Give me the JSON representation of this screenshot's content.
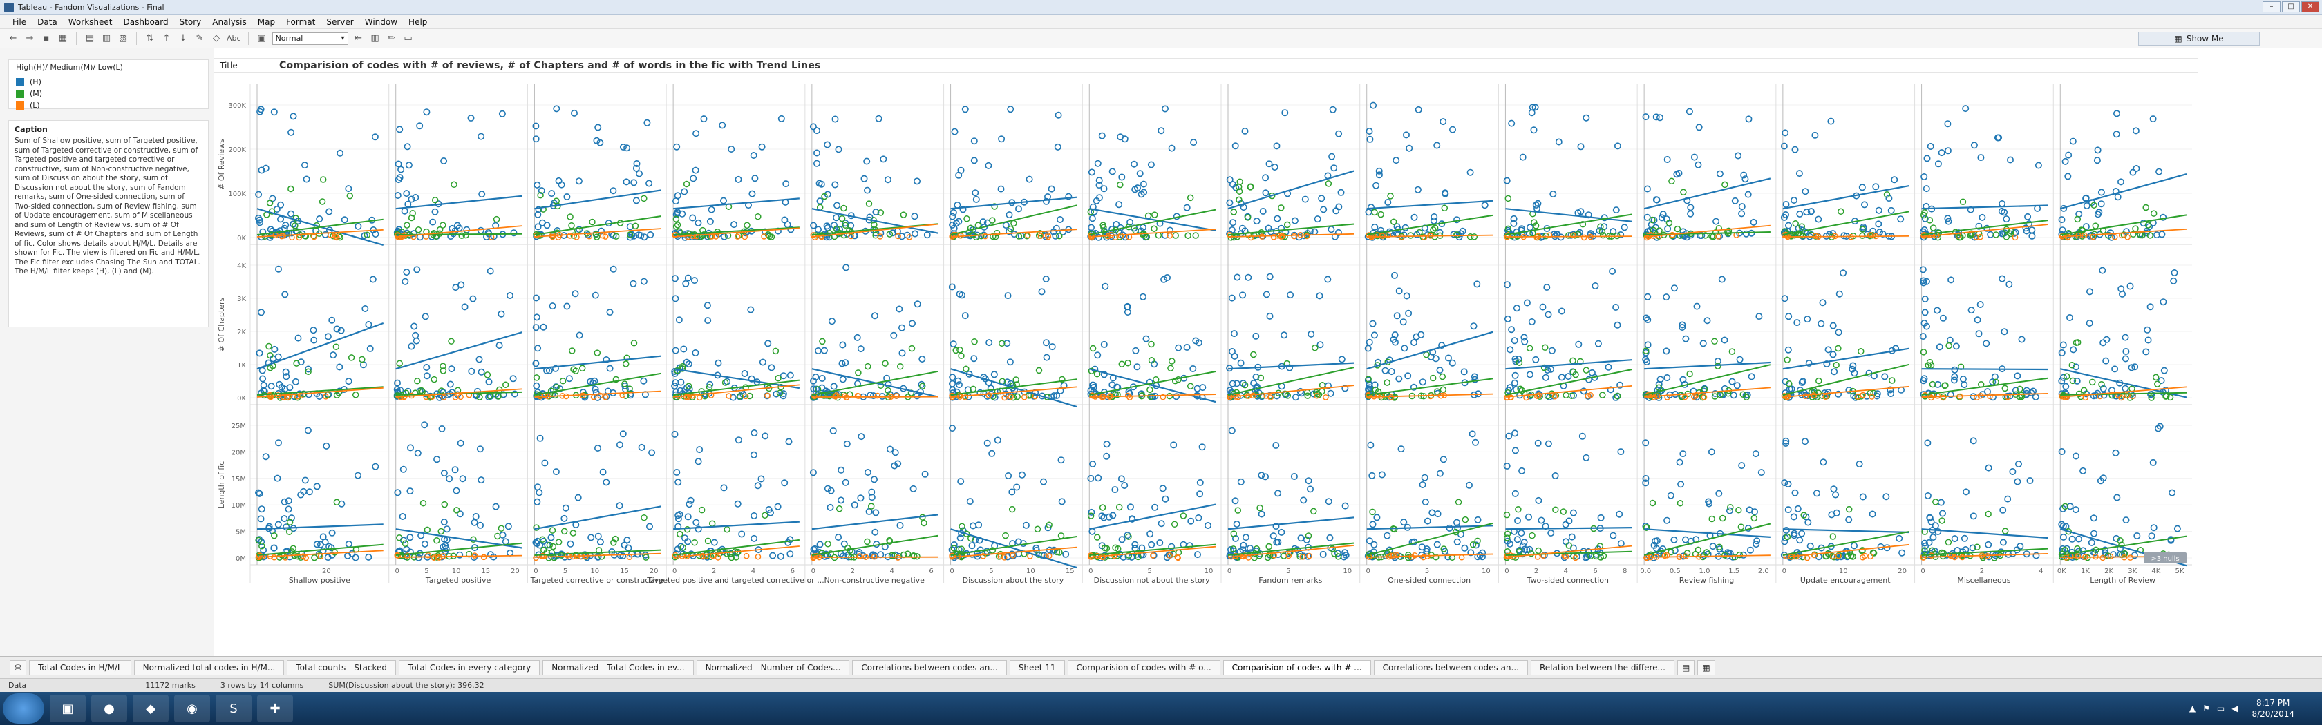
{
  "window": {
    "title": "Tableau - Fandom Visualizations - Final"
  },
  "menu": [
    "File",
    "Data",
    "Worksheet",
    "Dashboard",
    "Story",
    "Analysis",
    "Map",
    "Format",
    "Server",
    "Window",
    "Help"
  ],
  "toolbar": {
    "fit": "Normal",
    "show_me": "Show Me",
    "abc": "Abc"
  },
  "legend": {
    "title": "High(H)/ Medium(M)/ Low(L)",
    "items": [
      {
        "label": "(H)",
        "color": "#1f77b4"
      },
      {
        "label": "(M)",
        "color": "#2ca02c"
      },
      {
        "label": "(L)",
        "color": "#ff7f0e"
      }
    ]
  },
  "caption": {
    "title": "Caption",
    "text": "Sum of Shallow positive, sum of Targeted positive, sum of Targeted corrective or constructive, sum of Targeted positive and targeted corrective or constructive, sum of Non-constructive negative, sum of Discussion about the story, sum of Discussion not about the story, sum of Fandom remarks, sum of One-sided connection, sum of Two-sided connection, sum of Review fishing, sum of Update encouragement, sum of Miscellaneous and sum of Length of Review vs. sum of # Of Reviews, sum of # Of Chapters and sum of Length of fic.  Color shows details about H/M/L.  Details are shown for Fic. The view is filtered on Fic and H/M/L. The Fic filter excludes Chasing The Sun and TOTAL. The H/M/L filter keeps (H), (L) and (M)."
  },
  "title_row": {
    "label": "Title",
    "text": "Comparision  of codes with # of reviews, # of Chapters and # of words in the fic with Trend Lines"
  },
  "chart_data": {
    "type": "scatter",
    "columns": [
      "Shallow positive",
      "Targeted positive",
      "Targeted corrective or constructive",
      "Targeted positive and targeted corrective or ...",
      "Non-constructive negative",
      "Discussion about the story",
      "Discussion not about the story",
      "Fandom remarks",
      "One-sided connection",
      "Two-sided connection",
      "Review fishing",
      "Update encouragement",
      "Miscellaneous",
      "Length of Review"
    ],
    "rows": [
      {
        "name": "# Of Reviews",
        "ticks": [
          "0K",
          "100K",
          "200K",
          "300K"
        ],
        "ylim": [
          0,
          340000
        ]
      },
      {
        "name": "# Of Chapters",
        "ticks": [
          "0K",
          "1K",
          "2K",
          "3K",
          "4K"
        ],
        "ylim": [
          0,
          4200
        ]
      },
      {
        "name": "Length of fic",
        "ticks": [
          "0M",
          "5M",
          "10M",
          "15M",
          "20M",
          "25M"
        ],
        "ylim": [
          0,
          26000000
        ]
      }
    ],
    "x_ticks": [
      [
        "20"
      ],
      [
        "0",
        "5",
        "10",
        "15",
        "20"
      ],
      [
        "0",
        "5",
        "10",
        "15",
        "20"
      ],
      [
        "0",
        "2",
        "4",
        "6"
      ],
      [
        "0",
        "2",
        "4",
        "6"
      ],
      [
        "0",
        "5",
        "10",
        "15"
      ],
      [
        "0",
        "5",
        "10"
      ],
      [
        "0",
        "5",
        "10"
      ],
      [
        "0",
        "5",
        "10"
      ],
      [
        "0",
        "2",
        "4",
        "6",
        "8"
      ],
      [
        "0.0",
        "0.5",
        "1.0",
        "1.5",
        "2.0"
      ],
      [
        "0",
        "10",
        "20"
      ],
      [
        "0",
        "2",
        "4"
      ],
      [
        "0K",
        "1K",
        "2K",
        "3K",
        "4K",
        "5K"
      ]
    ],
    "series": [
      {
        "name": "(H)",
        "color": "#1f77b4"
      },
      {
        "name": "(M)",
        "color": "#2ca02c"
      },
      {
        "name": "(L)",
        "color": "#ff7f0e"
      }
    ],
    "nulls_badge": ">3 nulls"
  },
  "sheet_tabs": [
    "Total Codes in H/M/L",
    "Normalized total codes in H/M...",
    "Total counts - Stacked",
    "Total Codes in every category",
    "Normalized - Total Codes in ev...",
    "Normalized - Number of Codes...",
    "Correlations between codes an...",
    "Sheet 11",
    "Comparision  of codes with # o...",
    "Comparision  of codes with # ...",
    "Correlations between codes an...",
    "Relation between the differe..."
  ],
  "active_tab": 9,
  "status": {
    "source": "Data",
    "marks": "11172 marks",
    "dims": "3 rows by 14 columns",
    "sum": "SUM(Discussion about the story): 396.32"
  },
  "clock": {
    "time": "8:17 PM",
    "date": "8/20/2014"
  }
}
